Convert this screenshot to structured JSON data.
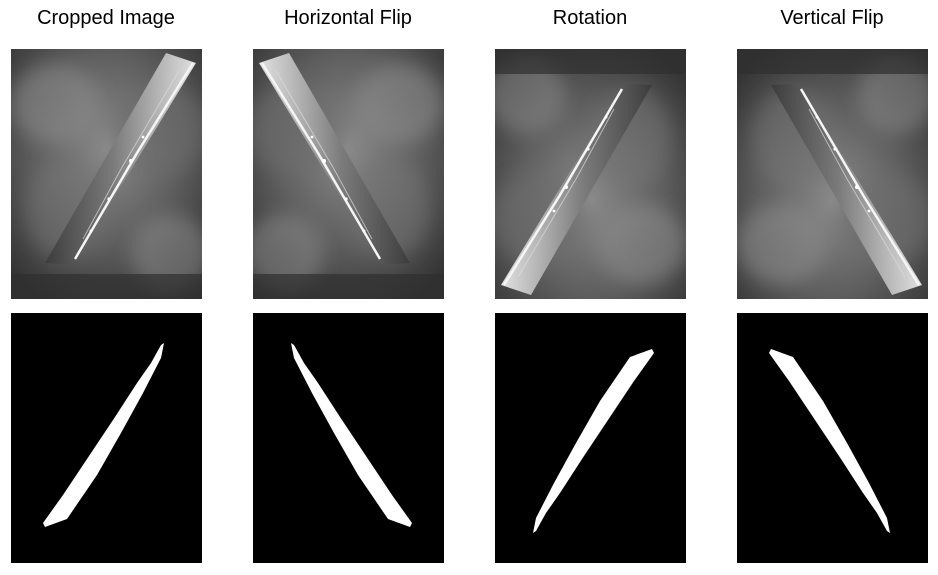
{
  "columns": [
    {
      "title": "Cropped Image"
    },
    {
      "title": "Horizontal Flip"
    },
    {
      "title": "Rotation"
    },
    {
      "title": "Vertical Flip"
    }
  ],
  "colors": {
    "background": "#ffffff",
    "mask_background": "#000000",
    "mask_foreground": "#ffffff"
  }
}
